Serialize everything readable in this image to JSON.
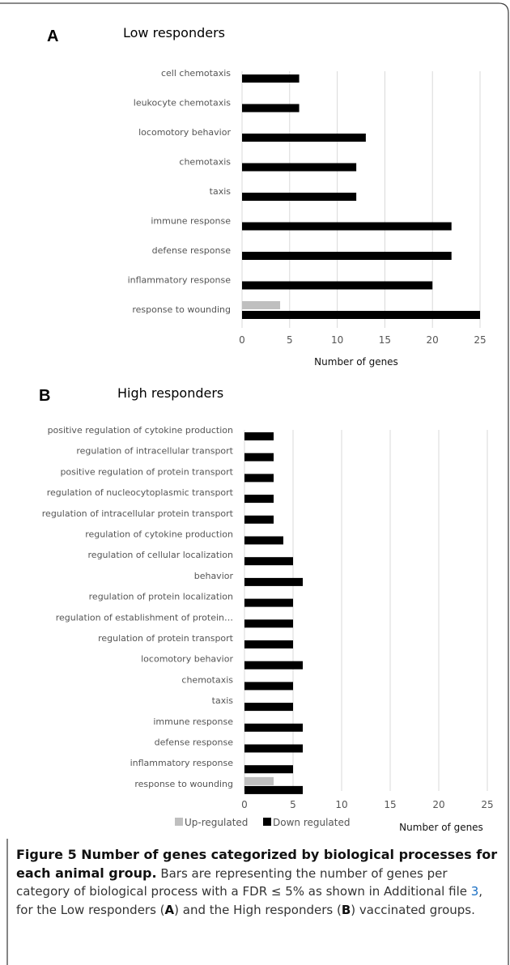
{
  "panels": [
    {
      "letter": "A",
      "title": "Low responders",
      "chart_data": {
        "type": "bar",
        "orientation": "horizontal",
        "categories": [
          "cell chemotaxis",
          "leukocyte chemotaxis",
          "locomotory behavior",
          "chemotaxis",
          "taxis",
          "immune response",
          "defense response",
          "inflammatory response",
          "response to wounding"
        ],
        "series": [
          {
            "name": "Up-regulated",
            "color": "#bfbfbf",
            "values": [
              0,
              0,
              0,
              0,
              0,
              0,
              0,
              0,
              4
            ]
          },
          {
            "name": "Down regulated",
            "color": "#000000",
            "values": [
              6,
              6,
              13,
              12,
              12,
              22,
              22,
              20,
              25
            ]
          }
        ],
        "xlim": [
          0,
          25
        ],
        "xticks": [
          "0",
          "5",
          "10",
          "15",
          "20",
          "25"
        ],
        "xlabel": "Number of genes",
        "grid": true
      }
    },
    {
      "letter": "B",
      "title": "High responders",
      "chart_data": {
        "type": "bar",
        "orientation": "horizontal",
        "categories": [
          "positive regulation of cytokine production",
          "regulation of intracellular transport",
          "positive regulation of protein transport",
          "regulation of nucleocytoplasmic transport",
          "regulation of intracellular protein transport",
          "regulation of cytokine production",
          "regulation of cellular localization",
          "behavior",
          "regulation of protein localization",
          "regulation of establishment of protein…",
          "regulation of protein transport",
          "locomotory behavior",
          "chemotaxis",
          "taxis",
          "immune response",
          "defense response",
          "inflammatory response",
          "response to wounding"
        ],
        "series": [
          {
            "name": "Up-regulated",
            "color": "#bfbfbf",
            "values": [
              0,
              0,
              0,
              0,
              0,
              0,
              0,
              0,
              0,
              0,
              0,
              0,
              0,
              0,
              0,
              0,
              0,
              3
            ]
          },
          {
            "name": "Down regulated",
            "color": "#000000",
            "values": [
              3,
              3,
              3,
              3,
              3,
              4,
              5,
              6,
              5,
              5,
              5,
              6,
              5,
              5,
              6,
              6,
              5,
              6
            ]
          }
        ],
        "xlim": [
          0,
          25
        ],
        "xticks": [
          "0",
          "5",
          "10",
          "15",
          "20",
          "25"
        ],
        "xlabel": "Number of genes",
        "legend": "bottom",
        "grid": true
      }
    }
  ],
  "caption": {
    "head": "Figure 5  Number of genes categorized by biological processes for each animal group.",
    "part1": " Bars are representing the number of genes per category of biological process with a FDR ≤ 5% as shown in Additional file ",
    "link": "3",
    "part2": ", for the Low responders (",
    "a": "A",
    "part3": ") and the High responders (",
    "b": "B",
    "part4": ") vaccinated groups."
  },
  "colors": {
    "up": "#bfbfbf",
    "down": "#000000",
    "grid": "#d9d9d9",
    "link": "#1a6fc4"
  }
}
